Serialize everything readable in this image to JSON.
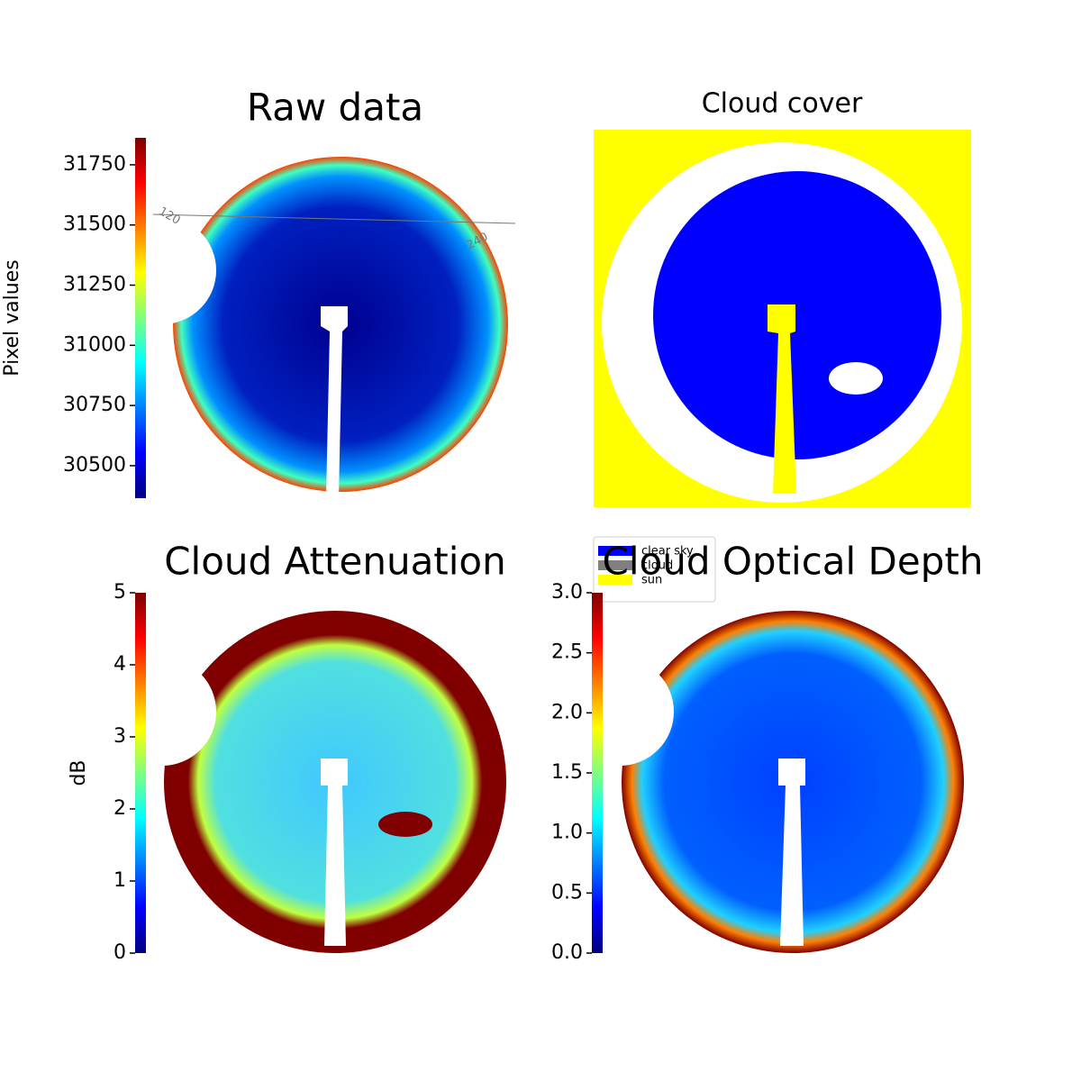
{
  "chart_data": [
    {
      "type": "image",
      "title": "Raw data",
      "colormap": "jet",
      "annotations": [
        "120",
        "240"
      ],
      "colorbar": {
        "label": "Pixel values",
        "lim": [
          30365,
          31862
        ],
        "ticks": [
          30500,
          30750,
          31000,
          31250,
          31500,
          31750
        ]
      }
    },
    {
      "type": "image",
      "title": "Cloud cover",
      "legend": [
        {
          "name": "clear sky",
          "color": "#0000ff"
        },
        {
          "name": "cloud",
          "color": "#808080"
        },
        {
          "name": "sun",
          "color": "#ffff00"
        }
      ]
    },
    {
      "type": "image",
      "title": "Cloud Attenuation",
      "colormap": "jet",
      "colorbar": {
        "label": "dB",
        "lim": [
          0,
          5
        ],
        "ticks": [
          0,
          1,
          2,
          3,
          4,
          5
        ]
      }
    },
    {
      "type": "image",
      "title": "Cloud Optical Depth",
      "colormap": "jet",
      "colorbar": {
        "lim": [
          0,
          3
        ],
        "ticks": [
          {
            "value": 0,
            "label": "0.0"
          },
          0.5,
          {
            "value": 1,
            "label": "1.0"
          },
          1.5,
          {
            "value": 2,
            "label": "2.0"
          },
          2.5,
          {
            "value": 3,
            "label": "3.0"
          }
        ]
      }
    }
  ]
}
